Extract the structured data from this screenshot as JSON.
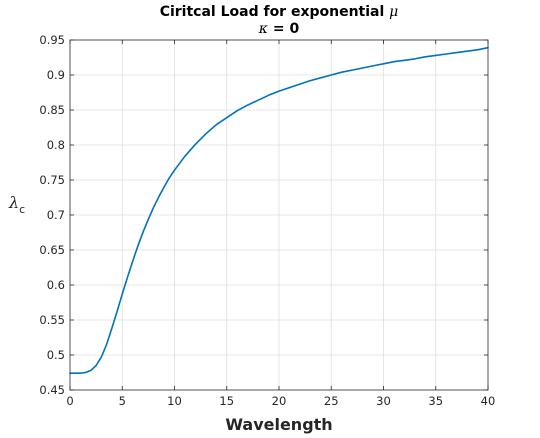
{
  "chart_data": {
    "type": "line",
    "title_line1_text": "Ciritcal Load for exponential ",
    "title_line1_symbol": "μ",
    "title_line2_symbol": "κ",
    "title_line2_text": " = 0",
    "xlabel": "Wavelength",
    "ylabel_symbol": "λ",
    "ylabel_subscript": "c",
    "xlim": [
      0,
      40
    ],
    "ylim": [
      0.45,
      0.95
    ],
    "grid": true,
    "x_ticks": [
      0,
      5,
      10,
      15,
      20,
      25,
      30,
      35,
      40
    ],
    "x_tick_labels": [
      "0",
      "5",
      "10",
      "15",
      "20",
      "25",
      "30",
      "35",
      "40"
    ],
    "y_ticks": [
      0.45,
      0.5,
      0.55,
      0.6,
      0.65,
      0.7,
      0.75,
      0.8,
      0.85,
      0.9,
      0.95
    ],
    "y_tick_labels": [
      "0.45",
      "0.5",
      "0.55",
      "0.6",
      "0.65",
      "0.7",
      "0.75",
      "0.8",
      "0.85",
      "0.9",
      "0.95"
    ],
    "line_color": "#0072BD",
    "grid_color": "#DFDFDF",
    "series": [
      {
        "x": [
          0,
          0.5,
          1,
          1.5,
          2,
          2.5,
          3,
          3.5,
          4,
          4.5,
          5,
          5.5,
          6,
          6.5,
          7,
          7.5,
          8,
          8.5,
          9,
          9.5,
          10,
          11,
          12,
          13,
          14,
          15,
          16,
          17,
          18,
          19,
          20,
          21,
          22,
          23,
          24,
          25,
          26,
          27,
          28,
          29,
          30,
          31,
          32,
          33,
          34,
          35,
          36,
          37,
          38,
          39,
          40
        ],
        "y": [
          0.474,
          0.474,
          0.474,
          0.475,
          0.478,
          0.485,
          0.497,
          0.515,
          0.538,
          0.562,
          0.587,
          0.611,
          0.634,
          0.656,
          0.676,
          0.694,
          0.711,
          0.726,
          0.74,
          0.753,
          0.764,
          0.784,
          0.801,
          0.816,
          0.829,
          0.839,
          0.849,
          0.857,
          0.864,
          0.871,
          0.877,
          0.882,
          0.887,
          0.892,
          0.896,
          0.9,
          0.904,
          0.907,
          0.91,
          0.913,
          0.916,
          0.919,
          0.921,
          0.923,
          0.926,
          0.928,
          0.93,
          0.932,
          0.934,
          0.936,
          0.939
        ]
      }
    ]
  }
}
